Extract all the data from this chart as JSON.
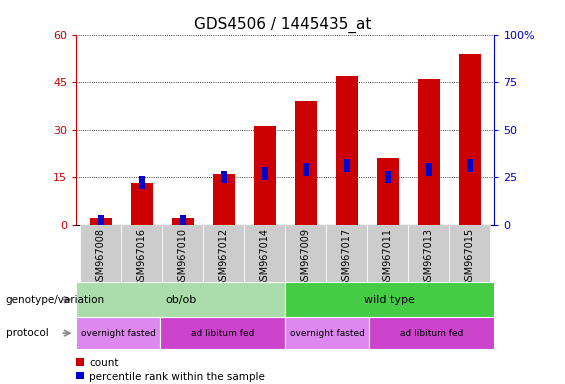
{
  "title": "GDS4506 / 1445435_at",
  "samples": [
    "GSM967008",
    "GSM967016",
    "GSM967010",
    "GSM967012",
    "GSM967014",
    "GSM967009",
    "GSM967017",
    "GSM967011",
    "GSM967013",
    "GSM967015"
  ],
  "counts": [
    2,
    13,
    2,
    16,
    31,
    39,
    47,
    21,
    46,
    54
  ],
  "percentile_ranks": [
    2,
    22,
    2,
    25,
    27,
    29,
    31,
    25,
    29,
    31
  ],
  "ylim_left": [
    0,
    60
  ],
  "ylim_right": [
    0,
    100
  ],
  "yticks_left": [
    0,
    15,
    30,
    45,
    60
  ],
  "yticks_right": [
    0,
    25,
    50,
    75,
    100
  ],
  "ytick_labels_left": [
    "0",
    "15",
    "30",
    "45",
    "60"
  ],
  "ytick_labels_right": [
    "0",
    "25",
    "50",
    "75",
    "100%"
  ],
  "bar_color": "#cc0000",
  "percentile_color": "#0000cc",
  "bar_width": 0.55,
  "genotype_groups": [
    {
      "label": "ob/ob",
      "start": 0,
      "end": 5,
      "color": "#aaddaa"
    },
    {
      "label": "wild type",
      "start": 5,
      "end": 10,
      "color": "#44cc44"
    }
  ],
  "protocol_groups": [
    {
      "label": "overnight fasted",
      "start": 0,
      "end": 2,
      "color": "#dd88ee"
    },
    {
      "label": "ad libitum fed",
      "start": 2,
      "end": 5,
      "color": "#cc44cc"
    },
    {
      "label": "overnight fasted",
      "start": 5,
      "end": 7,
      "color": "#dd88ee"
    },
    {
      "label": "ad libitum fed",
      "start": 7,
      "end": 10,
      "color": "#cc44cc"
    }
  ],
  "genotype_label": "genotype/variation",
  "protocol_label": "protocol",
  "legend_count_label": "count",
  "legend_percentile_label": "percentile rank within the sample",
  "bg_color": "#ffffff",
  "plot_bg_color": "#ffffff",
  "tick_color_left": "#cc0000",
  "tick_color_right": "#0000cc",
  "title_fontsize": 11,
  "tick_fontsize": 8,
  "sample_label_fontsize": 7,
  "annotation_fontsize": 8
}
